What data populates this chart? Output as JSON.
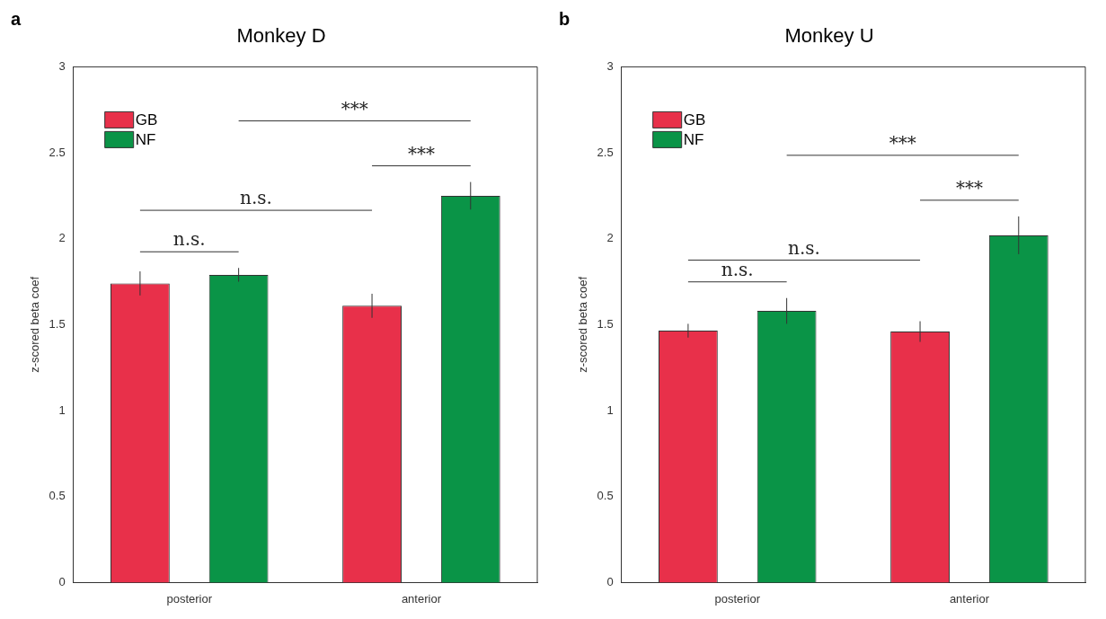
{
  "chart_data": [
    {
      "type": "bar",
      "title": "Monkey D",
      "ylabel": "z-scored beta coef",
      "categories": [
        "posterior",
        "anterior"
      ],
      "series": [
        {
          "name": "GB",
          "color": "#e8304a",
          "values": [
            1.74,
            1.61
          ],
          "errors": [
            0.07,
            0.07
          ]
        },
        {
          "name": "NF",
          "color": "#0a9447",
          "values": [
            1.79,
            2.25
          ],
          "errors": [
            0.04,
            0.08
          ]
        }
      ],
      "ylim": [
        0,
        3
      ],
      "yticks": [
        0,
        0.5,
        1,
        1.5,
        2,
        2.5,
        3
      ],
      "legend": "top left",
      "grid": false,
      "annotations": [
        "a",
        "n.s.",
        "***",
        "n.s.",
        "***"
      ]
    },
    {
      "type": "bar",
      "title": "Monkey U",
      "ylabel": "z-scored beta coef",
      "categories": [
        "posterior",
        "anterior"
      ],
      "series": [
        {
          "name": "GB",
          "color": "#e8304a",
          "values": [
            1.465,
            1.46
          ],
          "errors": [
            0.04,
            0.06
          ]
        },
        {
          "name": "NF",
          "color": "#0a9447",
          "values": [
            1.58,
            2.02
          ],
          "errors": [
            0.075,
            0.11
          ]
        }
      ],
      "ylim": [
        0,
        3
      ],
      "yticks": [
        0,
        0.5,
        1,
        1.5,
        2,
        2.5,
        3
      ],
      "legend": "top left",
      "grid": false,
      "annotations": [
        "b",
        "n.s.",
        "***",
        "n.s.",
        "***"
      ]
    }
  ]
}
